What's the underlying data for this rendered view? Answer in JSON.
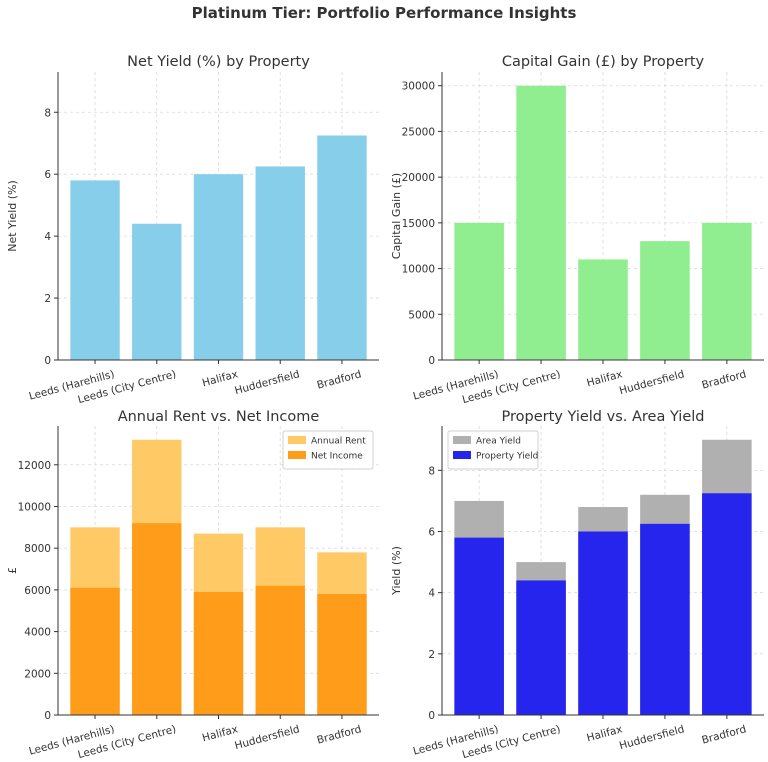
{
  "figure_title": "Platinum Tier: Portfolio Performance Insights",
  "chart_data": [
    {
      "type": "bar",
      "title": "Net Yield (%) by Property",
      "xlabel": "",
      "ylabel": "Net Yield (%)",
      "categories": [
        "Leeds (Harehills)",
        "Leeds (City Centre)",
        "Halifax",
        "Huddersfield",
        "Bradford"
      ],
      "series": [
        {
          "values": [
            5.8,
            4.4,
            6.0,
            6.25,
            7.25
          ],
          "color": "#87ceeb"
        }
      ],
      "ylim": [
        0,
        9.3
      ],
      "yticks": [
        0,
        2,
        4,
        6,
        8
      ],
      "grid": true,
      "legend": null
    },
    {
      "type": "bar",
      "title": "Capital Gain (£) by Property",
      "xlabel": "",
      "ylabel": "Capital Gain (£)",
      "categories": [
        "Leeds (Harehills)",
        "Leeds (City Centre)",
        "Halifax",
        "Huddersfield",
        "Bradford"
      ],
      "series": [
        {
          "values": [
            15000,
            30000,
            11000,
            13000,
            15000
          ],
          "color": "#90ee90"
        }
      ],
      "ylim": [
        0,
        31500
      ],
      "yticks": [
        0,
        5000,
        10000,
        15000,
        20000,
        25000,
        30000
      ],
      "grid": true,
      "legend": null
    },
    {
      "type": "bar",
      "title": "Annual Rent vs. Net Income",
      "xlabel": "",
      "ylabel": "£",
      "categories": [
        "Leeds (Harehills)",
        "Leeds (City Centre)",
        "Halifax",
        "Huddersfield",
        "Bradford"
      ],
      "series": [
        {
          "name": "Annual Rent",
          "values": [
            9000,
            13200,
            8700,
            9000,
            7800
          ],
          "color": "#ffc966"
        },
        {
          "name": "Net Income",
          "values": [
            6100,
            9200,
            5900,
            6200,
            5800
          ],
          "color": "#ff9c1a"
        }
      ],
      "ylim": [
        0,
        13860
      ],
      "yticks": [
        0,
        2000,
        4000,
        6000,
        8000,
        10000,
        12000
      ],
      "grid": true,
      "legend": "top-right"
    },
    {
      "type": "bar",
      "title": "Property Yield vs. Area Yield",
      "xlabel": "",
      "ylabel": "Yield (%)",
      "categories": [
        "Leeds (Harehills)",
        "Leeds (City Centre)",
        "Halifax",
        "Huddersfield",
        "Bradford"
      ],
      "series": [
        {
          "name": "Area Yield",
          "values": [
            7.0,
            5.0,
            6.8,
            7.2,
            9.0
          ],
          "color": "#b0b0b0"
        },
        {
          "name": "Property Yield",
          "values": [
            5.8,
            4.4,
            6.0,
            6.25,
            7.25
          ],
          "color": "#2525ee"
        }
      ],
      "ylim": [
        0,
        9.45
      ],
      "yticks": [
        0,
        2,
        4,
        6,
        8
      ],
      "grid": true,
      "legend": "top-left"
    }
  ]
}
